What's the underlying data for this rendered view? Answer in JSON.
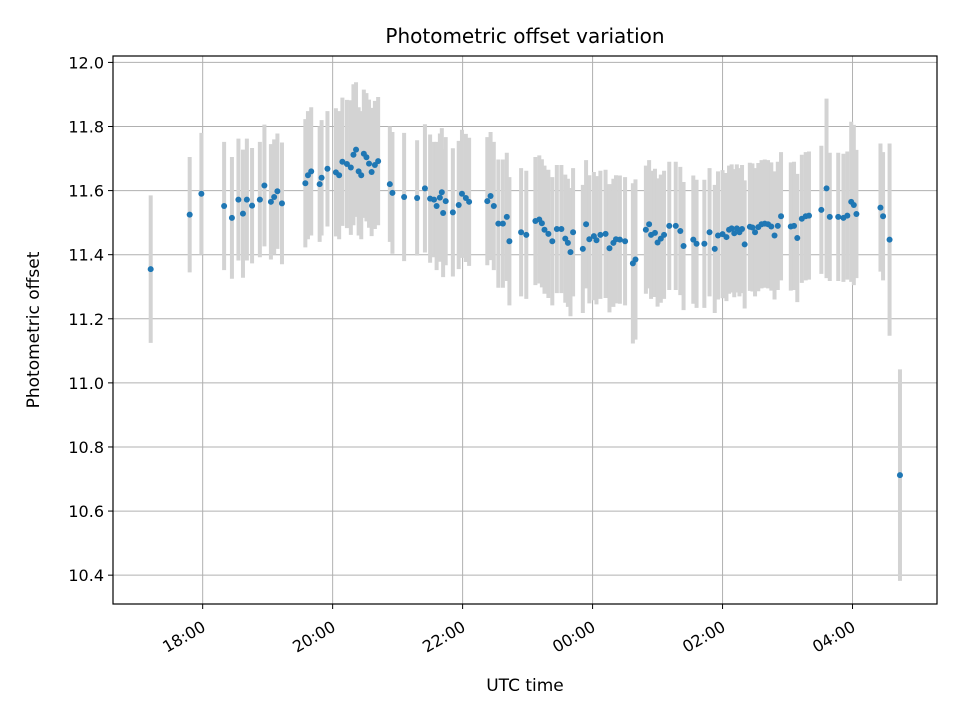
{
  "chart_data": {
    "type": "scatter",
    "title": "Photometric offset variation",
    "xlabel": "UTC time",
    "ylabel": "Photometric offset",
    "x_axis": {
      "type": "time",
      "range_hours": [
        16.62,
        29.3
      ],
      "ticks": [
        {
          "hour": 18,
          "label": "18:00"
        },
        {
          "hour": 20,
          "label": "20:00"
        },
        {
          "hour": 22,
          "label": "22:00"
        },
        {
          "hour": 24,
          "label": "00:00"
        },
        {
          "hour": 26,
          "label": "02:00"
        },
        {
          "hour": 28,
          "label": "04:00"
        }
      ]
    },
    "ylim": [
      10.31,
      12.02
    ],
    "yticks": [
      "10.4",
      "10.6",
      "10.8",
      "11.0",
      "11.2",
      "11.4",
      "11.6",
      "11.8",
      "12.0"
    ],
    "grid": true,
    "marker_color": "#1f77b4",
    "errorbar_color": "#d3d3d3",
    "points": [
      [
        17.2,
        11.355,
        0.23
      ],
      [
        17.8,
        11.525,
        0.18
      ],
      [
        17.98,
        11.59,
        0.19
      ],
      [
        18.33,
        11.552,
        0.2
      ],
      [
        18.45,
        11.515,
        0.19
      ],
      [
        18.55,
        11.572,
        0.19
      ],
      [
        18.62,
        11.528,
        0.2
      ],
      [
        18.68,
        11.572,
        0.19
      ],
      [
        18.76,
        11.553,
        0.18
      ],
      [
        18.88,
        11.572,
        0.18
      ],
      [
        18.95,
        11.616,
        0.19
      ],
      [
        19.05,
        11.565,
        0.18
      ],
      [
        19.1,
        11.58,
        0.18
      ],
      [
        19.15,
        11.598,
        0.18
      ],
      [
        19.22,
        11.56,
        0.19
      ],
      [
        19.58,
        11.623,
        0.2
      ],
      [
        19.62,
        11.648,
        0.2
      ],
      [
        19.67,
        11.66,
        0.2
      ],
      [
        19.8,
        11.62,
        0.18
      ],
      [
        19.83,
        11.64,
        0.18
      ],
      [
        19.92,
        11.668,
        0.18
      ],
      [
        20.05,
        11.657,
        0.2
      ],
      [
        20.1,
        11.648,
        0.2
      ],
      [
        20.15,
        11.69,
        0.2
      ],
      [
        20.22,
        11.683,
        0.2
      ],
      [
        20.28,
        11.672,
        0.21
      ],
      [
        20.32,
        11.712,
        0.22
      ],
      [
        20.36,
        11.728,
        0.21
      ],
      [
        20.4,
        11.66,
        0.2
      ],
      [
        20.44,
        11.648,
        0.2
      ],
      [
        20.48,
        11.715,
        0.2
      ],
      [
        20.52,
        11.704,
        0.2
      ],
      [
        20.56,
        11.684,
        0.2
      ],
      [
        20.6,
        11.658,
        0.2
      ],
      [
        20.65,
        11.68,
        0.2
      ],
      [
        20.7,
        11.692,
        0.2
      ],
      [
        20.88,
        11.62,
        0.18
      ],
      [
        20.92,
        11.593,
        0.19
      ],
      [
        21.1,
        11.58,
        0.2
      ],
      [
        21.3,
        11.577,
        0.18
      ],
      [
        21.42,
        11.607,
        0.2
      ],
      [
        21.5,
        11.575,
        0.2
      ],
      [
        21.56,
        11.572,
        0.18
      ],
      [
        21.6,
        11.552,
        0.2
      ],
      [
        21.65,
        11.578,
        0.2
      ],
      [
        21.68,
        11.595,
        0.2
      ],
      [
        21.7,
        11.53,
        0.2
      ],
      [
        21.74,
        11.567,
        0.2
      ],
      [
        21.85,
        11.532,
        0.2
      ],
      [
        21.94,
        11.555,
        0.2
      ],
      [
        21.99,
        11.59,
        0.2
      ],
      [
        22.05,
        11.577,
        0.2
      ],
      [
        22.1,
        11.565,
        0.2
      ],
      [
        22.38,
        11.567,
        0.2
      ],
      [
        22.43,
        11.583,
        0.2
      ],
      [
        22.48,
        11.552,
        0.2
      ],
      [
        22.55,
        11.497,
        0.2
      ],
      [
        22.62,
        11.497,
        0.2
      ],
      [
        22.68,
        11.518,
        0.2
      ],
      [
        22.72,
        11.442,
        0.2
      ],
      [
        22.9,
        11.47,
        0.2
      ],
      [
        22.98,
        11.462,
        0.2
      ],
      [
        23.12,
        11.505,
        0.2
      ],
      [
        23.18,
        11.51,
        0.2
      ],
      [
        23.22,
        11.498,
        0.2
      ],
      [
        23.26,
        11.478,
        0.2
      ],
      [
        23.32,
        11.465,
        0.2
      ],
      [
        23.38,
        11.442,
        0.2
      ],
      [
        23.45,
        11.48,
        0.2
      ],
      [
        23.52,
        11.48,
        0.2
      ],
      [
        23.58,
        11.45,
        0.2
      ],
      [
        23.62,
        11.437,
        0.2
      ],
      [
        23.66,
        11.408,
        0.2
      ],
      [
        23.7,
        11.47,
        0.2
      ],
      [
        23.85,
        11.418,
        0.2
      ],
      [
        23.9,
        11.495,
        0.2
      ],
      [
        23.95,
        11.448,
        0.2
      ],
      [
        24.02,
        11.458,
        0.2
      ],
      [
        24.06,
        11.445,
        0.2
      ],
      [
        24.12,
        11.462,
        0.2
      ],
      [
        24.2,
        11.465,
        0.2
      ],
      [
        24.26,
        11.42,
        0.2
      ],
      [
        24.32,
        11.437,
        0.2
      ],
      [
        24.36,
        11.448,
        0.2
      ],
      [
        24.42,
        11.447,
        0.2
      ],
      [
        24.5,
        11.442,
        0.2
      ],
      [
        24.62,
        11.373,
        0.25
      ],
      [
        24.66,
        11.385,
        0.25
      ],
      [
        24.82,
        11.478,
        0.2
      ],
      [
        24.87,
        11.495,
        0.2
      ],
      [
        24.9,
        11.462,
        0.2
      ],
      [
        24.96,
        11.468,
        0.2
      ],
      [
        25.0,
        11.438,
        0.2
      ],
      [
        25.05,
        11.45,
        0.2
      ],
      [
        25.1,
        11.462,
        0.2
      ],
      [
        25.18,
        11.49,
        0.2
      ],
      [
        25.28,
        11.49,
        0.2
      ],
      [
        25.35,
        11.474,
        0.2
      ],
      [
        25.4,
        11.427,
        0.2
      ],
      [
        25.55,
        11.447,
        0.2
      ],
      [
        25.6,
        11.434,
        0.2
      ],
      [
        25.72,
        11.434,
        0.2
      ],
      [
        25.8,
        11.47,
        0.2
      ],
      [
        25.88,
        11.418,
        0.2
      ],
      [
        25.93,
        11.46,
        0.2
      ],
      [
        26.0,
        11.464,
        0.2
      ],
      [
        26.06,
        11.455,
        0.2
      ],
      [
        26.1,
        11.478,
        0.2
      ],
      [
        26.14,
        11.482,
        0.2
      ],
      [
        26.18,
        11.467,
        0.2
      ],
      [
        26.22,
        11.482,
        0.2
      ],
      [
        26.26,
        11.47,
        0.2
      ],
      [
        26.3,
        11.48,
        0.2
      ],
      [
        26.34,
        11.432,
        0.2
      ],
      [
        26.42,
        11.487,
        0.2
      ],
      [
        26.46,
        11.485,
        0.2
      ],
      [
        26.5,
        11.47,
        0.2
      ],
      [
        26.55,
        11.486,
        0.2
      ],
      [
        26.6,
        11.495,
        0.2
      ],
      [
        26.65,
        11.497,
        0.2
      ],
      [
        26.7,
        11.495,
        0.2
      ],
      [
        26.75,
        11.488,
        0.2
      ],
      [
        26.8,
        11.46,
        0.2
      ],
      [
        26.85,
        11.49,
        0.2
      ],
      [
        26.9,
        11.52,
        0.2
      ],
      [
        27.05,
        11.488,
        0.2
      ],
      [
        27.1,
        11.49,
        0.2
      ],
      [
        27.15,
        11.452,
        0.2
      ],
      [
        27.22,
        11.512,
        0.2
      ],
      [
        27.28,
        11.52,
        0.2
      ],
      [
        27.33,
        11.522,
        0.2
      ],
      [
        27.52,
        11.54,
        0.2
      ],
      [
        27.6,
        11.607,
        0.28
      ],
      [
        27.65,
        11.518,
        0.2
      ],
      [
        27.78,
        11.518,
        0.2
      ],
      [
        27.86,
        11.515,
        0.2
      ],
      [
        27.92,
        11.522,
        0.2
      ],
      [
        27.98,
        11.565,
        0.25
      ],
      [
        28.02,
        11.555,
        0.25
      ],
      [
        28.06,
        11.527,
        0.2
      ],
      [
        28.43,
        11.547,
        0.2
      ],
      [
        28.47,
        11.52,
        0.2
      ],
      [
        28.57,
        11.447,
        0.3
      ],
      [
        28.73,
        10.712,
        0.33
      ]
    ]
  }
}
